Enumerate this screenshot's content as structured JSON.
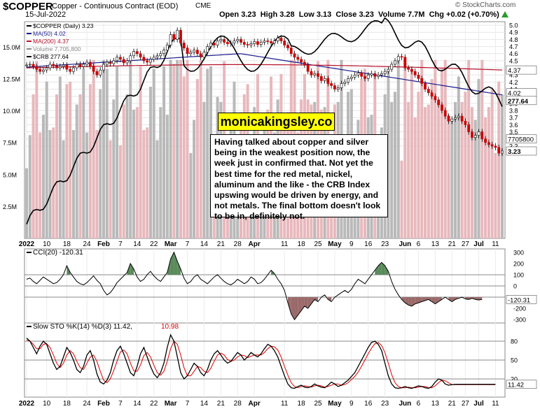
{
  "header": {
    "symbol": "$COPPER",
    "description": "Copper - Continuous Contract (EOD)",
    "exchange": "CME",
    "date": "15-Jul-2022",
    "open_label": "Open",
    "open": "3.23",
    "high_label": "High",
    "high": "3.28",
    "low_label": "Low",
    "low": "3.13",
    "close_label": "Close",
    "close": "3.23",
    "volume_label": "Volume",
    "volume": "7.7M",
    "chg_label": "Chg",
    "chg": "+0.02 (+0.70%)",
    "watermark": "© StockCharts.com"
  },
  "colors": {
    "up": "#ffffff",
    "down": "#cc0000",
    "candle_outline": "#000000",
    "ma50": "#1c1c8f",
    "ma200": "#b8102a",
    "crb": "#000000",
    "volume_up": "#b9b9b9",
    "volume_down": "#e8b8bc",
    "cci_pos_fill": "#5a8a5a",
    "cci_neg_fill": "#9a6a6a",
    "sto_k": "#000000",
    "sto_d": "#e00000"
  },
  "annotation": {
    "brand": "monicakingsley.co",
    "text": "Having talked about copper and silver being in the weakest position now, the week just in confirmed that. Not yet the best time for the red metal, nickel, aluminum and the like - the CRB Index upswing would be driven by energy, and not metals. The final bottom doesn't look to be in, definitely not."
  },
  "chart_data": [
    {
      "type": "candlestick",
      "panel": "price",
      "legend": [
        {
          "label": "$COPPER (Daily) 3.23",
          "color": "#000000"
        },
        {
          "label": "MA(50) 4.02",
          "color": "#1c1c8f"
        },
        {
          "label": "MA(200) 4.37",
          "color": "#b8102a"
        },
        {
          "label": "Volume 7,705,800",
          "color": "#888888"
        },
        {
          "label": "$CRB 277.64",
          "color": "#000000"
        }
      ],
      "x_tick_labels": [
        "2022",
        "10",
        "18",
        "24",
        "Feb",
        "7",
        "14",
        "22",
        "Mar",
        "7",
        "14",
        "21",
        "28",
        "Apr",
        "11",
        "18",
        "25",
        "May",
        "9",
        "16",
        "23",
        "Jun",
        "6",
        "13",
        "21",
        "27",
        "Jul",
        "11"
      ],
      "x_tick_index": [
        0,
        6,
        12,
        18,
        23,
        28,
        33,
        38,
        43,
        48,
        53,
        58,
        63,
        68,
        77,
        82,
        87,
        92,
        97,
        102,
        107,
        113,
        117,
        122,
        127,
        131,
        135,
        140
      ],
      "ylim": [
        2.0,
        5.05
      ],
      "y_ticks": [
        3.3,
        3.4,
        3.5,
        3.6,
        3.7,
        3.8,
        3.9,
        4.0,
        4.1,
        4.2,
        4.3,
        4.4,
        4.5,
        4.6,
        4.7,
        4.8,
        4.9,
        5.0
      ],
      "close_series": [
        4.44,
        4.45,
        4.42,
        4.38,
        4.35,
        4.37,
        4.4,
        4.45,
        4.43,
        4.4,
        4.42,
        4.44,
        4.38,
        4.35,
        4.4,
        4.45,
        4.42,
        4.45,
        4.48,
        4.42,
        4.35,
        4.3,
        4.37,
        4.45,
        4.48,
        4.46,
        4.5,
        4.55,
        4.52,
        4.47,
        4.5,
        4.57,
        4.63,
        4.6,
        4.55,
        4.5,
        4.48,
        4.52,
        4.55,
        4.57,
        4.6,
        4.65,
        4.72,
        4.87,
        4.8,
        4.93,
        4.75,
        4.68,
        4.6,
        4.62,
        4.65,
        4.6,
        4.55,
        4.62,
        4.7,
        4.75,
        4.72,
        4.78,
        4.8,
        4.76,
        4.74,
        4.75,
        4.78,
        4.8,
        4.76,
        4.73,
        4.72,
        4.74,
        4.77,
        4.73,
        4.76,
        4.78,
        4.77,
        4.75,
        4.78,
        4.82,
        4.78,
        4.72,
        4.68,
        4.6,
        4.55,
        4.52,
        4.48,
        4.44,
        4.35,
        4.3,
        4.32,
        4.28,
        4.22,
        4.25,
        4.18,
        4.15,
        4.1,
        4.12,
        4.18,
        4.2,
        4.25,
        4.27,
        4.3,
        4.33,
        4.28,
        4.25,
        4.3,
        4.32,
        4.28,
        4.3,
        4.32,
        4.35,
        4.38,
        4.45,
        4.5,
        4.56,
        4.55,
        4.4,
        4.38,
        4.35,
        4.3,
        4.25,
        4.18,
        4.1,
        4.05,
        4.0,
        3.95,
        3.88,
        3.8,
        3.72,
        3.65,
        3.68,
        3.7,
        3.72,
        3.65,
        3.6,
        3.5,
        3.42,
        3.45,
        3.5,
        3.4,
        3.35,
        3.32,
        3.3,
        3.28,
        3.2,
        3.23
      ],
      "ma50": {
        "start": 4.41,
        "mid": 4.6,
        "end": 4.02
      },
      "ma200": {
        "start": 4.4,
        "end": 4.37
      },
      "crb_label": "277.64",
      "axis_tags": [
        "4.37",
        "4.02",
        "277.64",
        "7705800",
        "3.23"
      ]
    },
    {
      "type": "bar",
      "panel": "volume",
      "y_ticks_labels": [
        "2.5M",
        "5.0M",
        "7.5M",
        "10.0M",
        "12.5M",
        "15.0M"
      ],
      "y_ticks_values": [
        2.5,
        5.0,
        7.5,
        10.0,
        12.5,
        15.0
      ],
      "ylim": [
        0,
        17
      ],
      "last": 7.7
    },
    {
      "type": "line",
      "panel": "cci",
      "title": "CCI(20) -120.31",
      "y_ticks": [
        300,
        200,
        100,
        0,
        -100,
        -200,
        -300
      ],
      "ylim": [
        -330,
        330
      ],
      "last_tag": "-120.31",
      "series": [
        60,
        70,
        40,
        20,
        50,
        80,
        60,
        40,
        20,
        30,
        60,
        100,
        180,
        120,
        80,
        40,
        20,
        10,
        30,
        60,
        90,
        50,
        20,
        -40,
        -80,
        -60,
        -20,
        30,
        60,
        90,
        120,
        200,
        150,
        80,
        40,
        60,
        100,
        130,
        90,
        60,
        40,
        80,
        120,
        240,
        300,
        220,
        150,
        70,
        20,
        40,
        80,
        100,
        60,
        40,
        20,
        50,
        80,
        100,
        70,
        40,
        20,
        10,
        30,
        60,
        40,
        20,
        40,
        80,
        60,
        20,
        30,
        60,
        100,
        140,
        110,
        60,
        20,
        -40,
        -150,
        -250,
        -300,
        -260,
        -220,
        -180,
        -200,
        -160,
        -120,
        -140,
        -100,
        -80,
        -120,
        -140,
        -100,
        -80,
        -60,
        -40,
        -60,
        -30,
        20,
        60,
        40,
        20,
        60,
        100,
        140,
        180,
        210,
        180,
        130,
        40,
        -30,
        -80,
        -120,
        -150,
        -170,
        -180,
        -160,
        -150,
        -140,
        -130,
        -120,
        -140,
        -160,
        -140,
        -120,
        -100,
        -120,
        -140,
        -120,
        -110,
        -100,
        -115,
        -120,
        -110,
        -120,
        -125,
        -120
      ]
    },
    {
      "type": "line",
      "panel": "stochastic",
      "title": "Slow STO %K(14) %D(3) 11.42, 10.98",
      "title_main": "Slow STO %K(14) %D(3) 11.42,",
      "title_d": "10.98",
      "y_ticks": [
        80,
        50,
        20
      ],
      "ylim": [
        0,
        100
      ],
      "last_tag": "11.42",
      "k": [
        85,
        80,
        70,
        60,
        72,
        80,
        75,
        60,
        45,
        35,
        40,
        55,
        70,
        62,
        50,
        35,
        30,
        40,
        58,
        65,
        50,
        28,
        15,
        12,
        18,
        30,
        50,
        65,
        72,
        60,
        45,
        30,
        25,
        40,
        60,
        70,
        55,
        40,
        28,
        22,
        30,
        45,
        70,
        90,
        80,
        55,
        30,
        20,
        25,
        35,
        45,
        40,
        30,
        25,
        35,
        50,
        60,
        65,
        58,
        50,
        45,
        48,
        55,
        62,
        58,
        50,
        55,
        62,
        58,
        55,
        60,
        68,
        75,
        72,
        65,
        55,
        40,
        25,
        12,
        6,
        5,
        8,
        10,
        7,
        6,
        8,
        12,
        9,
        7,
        6,
        10,
        15,
        12,
        8,
        10,
        14,
        18,
        24,
        30,
        40,
        50,
        60,
        70,
        78,
        80,
        75,
        65,
        45,
        25,
        12,
        6,
        5,
        6,
        8,
        6,
        5,
        7,
        9,
        8,
        6,
        5,
        8,
        15,
        20,
        18,
        12,
        10,
        11,
        11.42,
        11.42,
        11.42,
        11.42,
        11.42,
        11.42,
        11.42,
        11.42,
        11.42,
        11.42,
        11.42,
        11.42,
        11.42
      ],
      "d": [
        82,
        80,
        75,
        68,
        68,
        75,
        76,
        70,
        58,
        45,
        38,
        45,
        58,
        65,
        60,
        48,
        38,
        35,
        45,
        55,
        58,
        48,
        32,
        18,
        14,
        20,
        33,
        48,
        63,
        66,
        60,
        45,
        33,
        32,
        42,
        57,
        62,
        55,
        42,
        30,
        26,
        32,
        48,
        68,
        80,
        75,
        58,
        38,
        25,
        25,
        32,
        40,
        38,
        32,
        30,
        37,
        48,
        58,
        61,
        58,
        51,
        48,
        50,
        55,
        58,
        57,
        54,
        56,
        58,
        58,
        58,
        62,
        68,
        72,
        71,
        66,
        55,
        40,
        26,
        14,
        8,
        6,
        8,
        9,
        8,
        7,
        9,
        10,
        9,
        7,
        8,
        10,
        12,
        12,
        10,
        11,
        14,
        19,
        24,
        31,
        40,
        50,
        60,
        69,
        76,
        78,
        73,
        62,
        45,
        27,
        14,
        8,
        6,
        6,
        7,
        6,
        6,
        7,
        8,
        8,
        6,
        6,
        9,
        14,
        18,
        17,
        14,
        11,
        10.98,
        10.98,
        10.98,
        10.98,
        10.98,
        10.98,
        10.98,
        10.98,
        10.98,
        10.98,
        10.98,
        10.98,
        10.98
      ]
    }
  ]
}
